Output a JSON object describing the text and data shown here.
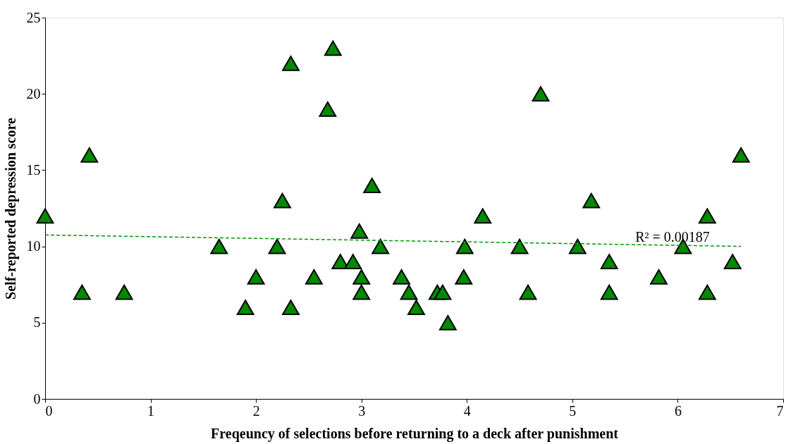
{
  "chart_data": {
    "type": "scatter",
    "xlabel": "Freqeuncy of selections before returning to a deck after punishment",
    "ylabel": "Self-reported depression score",
    "xlim": [
      0,
      7
    ],
    "xticks": [
      0,
      1,
      2,
      3,
      4,
      5,
      6,
      7
    ],
    "ylim": [
      0,
      25
    ],
    "yticks": [
      0,
      5,
      10,
      15,
      20,
      25
    ],
    "grid": false,
    "series": [
      {
        "color": "#008a00",
        "marker": "triangle",
        "x": [
          0,
          0.35,
          0.42,
          0.75,
          1.65,
          1.9,
          2.0,
          2.2,
          2.25,
          2.33,
          2.33,
          2.55,
          2.68,
          2.73,
          2.8,
          2.92,
          2.98,
          3.0,
          3.0,
          3.1,
          3.18,
          3.38,
          3.45,
          3.52,
          3.72,
          3.77,
          3.82,
          3.97,
          3.98,
          4.15,
          4.5,
          4.58,
          4.7,
          5.05,
          5.18,
          5.35,
          5.35,
          5.82,
          6.05,
          6.28,
          6.28,
          6.52,
          6.6
        ],
        "values": [
          12,
          7,
          16,
          7,
          10,
          6,
          8,
          10,
          13,
          22,
          6,
          8,
          19,
          23,
          9,
          9,
          11,
          8,
          7,
          14,
          10,
          8,
          7,
          6,
          7,
          7,
          5,
          8,
          10,
          12,
          10,
          7,
          20,
          10,
          13,
          9,
          7,
          8,
          10,
          12,
          7,
          9,
          16
        ]
      },
      {
        "type": "line",
        "color": "#009900",
        "line_style": "dashed",
        "x": [
          0,
          6.6
        ],
        "values": [
          10.75,
          10.0
        ]
      }
    ],
    "annotations": [
      {
        "text": "R² = 0.00187",
        "x": 5.95,
        "y": 10
      }
    ]
  }
}
